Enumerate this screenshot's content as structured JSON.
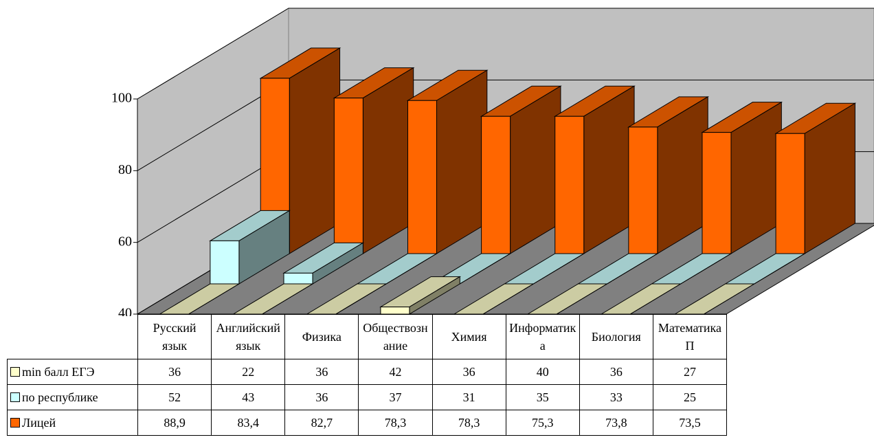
{
  "chart_data": {
    "type": "bar3d",
    "categories": [
      "Русский язык",
      "Английский язык",
      "Физика",
      "Обществознание",
      "Химия",
      "Информатика",
      "Биология",
      "Математика П"
    ],
    "series": [
      {
        "name": "min балл ЕГЭ",
        "color": "#ffffcc",
        "values": [
          36,
          22,
          36,
          42,
          36,
          40,
          36,
          27
        ]
      },
      {
        "name": "по республике",
        "color": "#ccffff",
        "values": [
          52,
          43,
          36,
          37,
          31,
          35,
          33,
          25
        ]
      },
      {
        "name": "Лицей",
        "color": "#ff6600",
        "values": [
          88.9,
          83.4,
          82.7,
          78.3,
          78.3,
          75.3,
          73.8,
          73.5
        ],
        "value_labels": [
          "88,9",
          "83,4",
          "82,7",
          "78,3",
          "78,3",
          "75,3",
          "73,8",
          "73,5"
        ]
      }
    ],
    "ylim": [
      40,
      100
    ],
    "yticks": [
      40,
      60,
      80,
      100
    ],
    "grid": true,
    "data_table": true
  }
}
